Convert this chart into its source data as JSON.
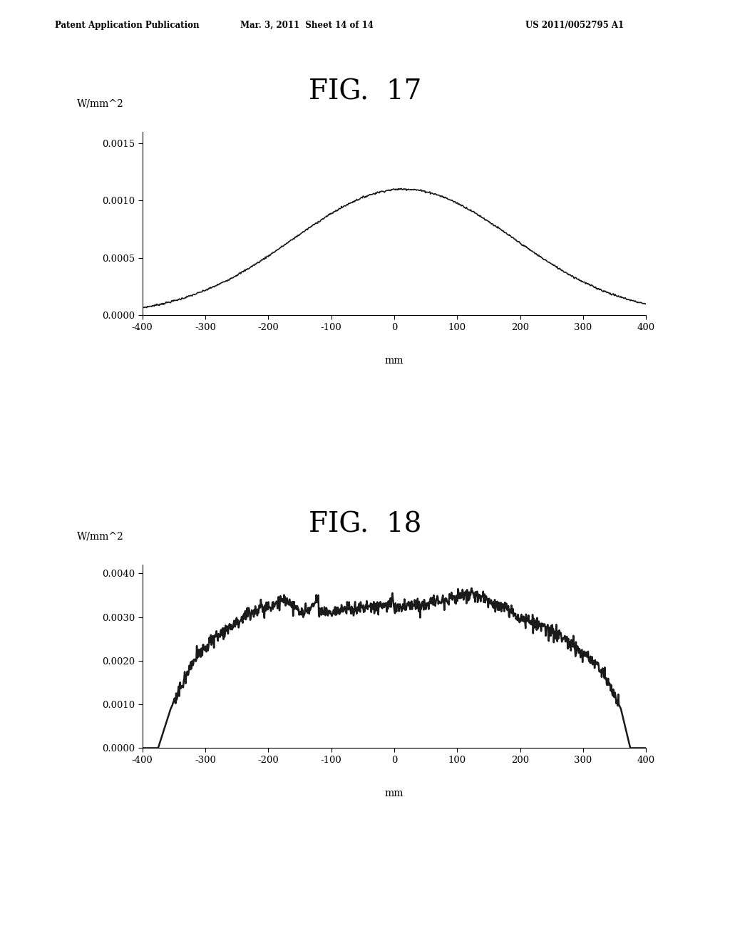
{
  "header_left": "Patent Application Publication",
  "header_mid": "Mar. 3, 2011  Sheet 14 of 14",
  "header_right": "US 2011/0052795 A1",
  "fig17_title": "FIG.  17",
  "fig18_title": "FIG.  18",
  "ylabel": "W/mm^2",
  "xlabel": "mm",
  "fig17_yticks": [
    0.0,
    0.0005,
    0.001,
    0.0015
  ],
  "fig17_ytick_labels": [
    "0.0000",
    "0.0005",
    "0.0010",
    "0.0015"
  ],
  "fig18_yticks": [
    0.0,
    0.001,
    0.002,
    0.003,
    0.004
  ],
  "fig18_ytick_labels": [
    "0.0000",
    "0.0010",
    "0.0020",
    "0.0030",
    "0.0040"
  ],
  "xticks": [
    -400,
    -300,
    -200,
    -100,
    0,
    100,
    200,
    300,
    400
  ],
  "xtick_labels": [
    "-400",
    "-300",
    "-200",
    "-100",
    "0",
    "100",
    "200",
    "300",
    "400"
  ],
  "background_color": "#ffffff",
  "line_color": "#1a1a1a"
}
